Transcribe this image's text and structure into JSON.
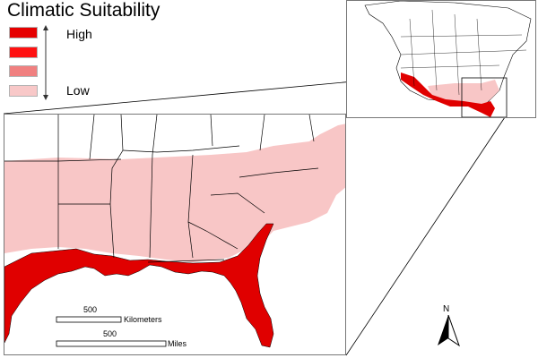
{
  "legend": {
    "title": "Climatic Suitability",
    "high_label": "High",
    "low_label": "Low",
    "classes": [
      {
        "color": "#e60000"
      },
      {
        "color": "#ff1111"
      },
      {
        "color": "#f08080"
      },
      {
        "color": "#f8c8c8"
      }
    ]
  },
  "scale_bar": {
    "km_value": "500",
    "km_unit": "Kilometers",
    "mi_value": "500",
    "mi_unit": "Miles"
  },
  "north_arrow": {
    "letter": "N"
  },
  "colors": {
    "high": "#e00000",
    "low": "#f8c6c6",
    "mid": "#f08080",
    "land": "#ffffff",
    "border": "#000000"
  }
}
